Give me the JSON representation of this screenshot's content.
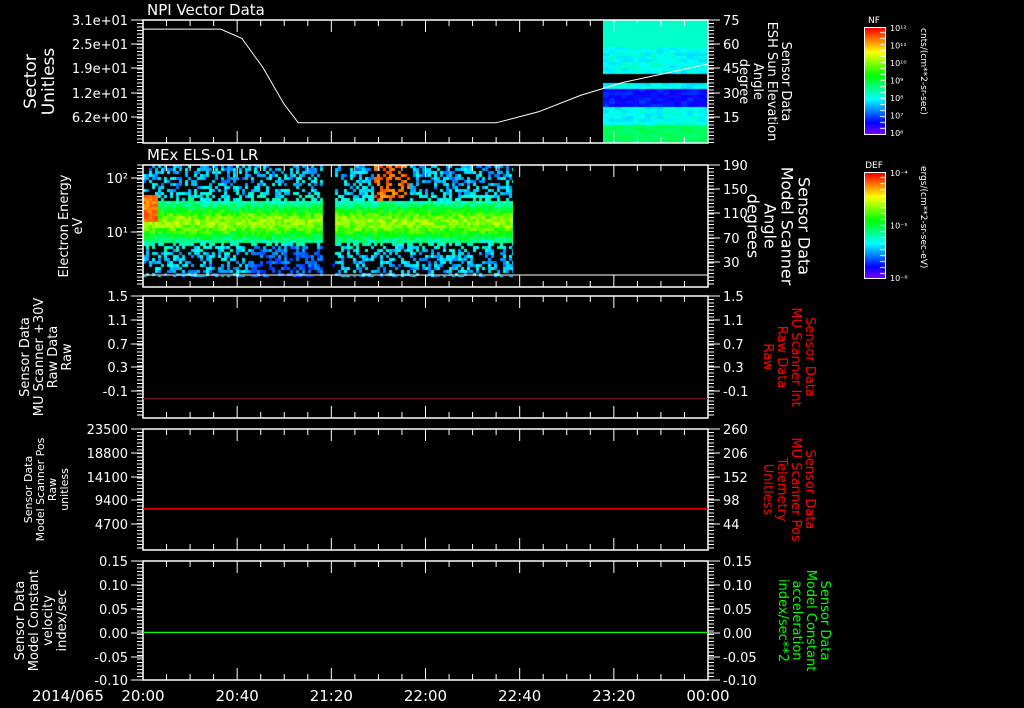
{
  "colors": {
    "background": "#000000",
    "axis": "#ffffff",
    "red": "#ff0000",
    "green": "#00ff00",
    "grey_line": "#7a2020"
  },
  "time_axis": {
    "date_label": "2014/065",
    "ticks": [
      "20:00",
      "20:40",
      "21:20",
      "22:00",
      "22:40",
      "23:20",
      "00:00"
    ],
    "range_hours": [
      20,
      24
    ]
  },
  "chart_data": [
    {
      "type": "line",
      "title": "NPI Vector Data",
      "ylabel": [
        "Sector",
        "Unitless"
      ],
      "yticks": [
        "3.1e+01",
        "2.5e+01",
        "1.9e+01",
        "1.2e+01",
        "6.2e+00"
      ],
      "ylim": [
        0,
        31
      ],
      "y2label": [
        "Sensor Data",
        "ESH Sun Elevation",
        "Angle",
        "degree"
      ],
      "y2ticks": [
        "75",
        "60",
        "45",
        "30",
        "15"
      ],
      "y2lim": [
        0,
        75
      ],
      "series": [
        {
          "name": "Sector",
          "x": [
            20.0,
            20.55,
            20.7,
            20.85,
            21.0,
            21.1,
            22.0,
            22.5,
            22.8,
            23.1,
            23.4,
            23.7,
            24.0
          ],
          "y": [
            28.5,
            28.5,
            26,
            18,
            8,
            3,
            3,
            3,
            6,
            10.5,
            14,
            16.5,
            19
          ]
        }
      ],
      "spectrogram": {
        "x_range": [
          23.2,
          24.0
        ],
        "colormap": "NF"
      }
    },
    {
      "type": "heatmap",
      "title": "MEx ELS-01 LR",
      "ylabel": [
        "Electron Energy",
        "eV"
      ],
      "yticks": [
        "10²",
        "10¹"
      ],
      "ylim_log": [
        0,
        2.3
      ],
      "y2label": [
        "Sensor Data",
        "Model Scanner",
        "Angle",
        "degrees"
      ],
      "y2ticks": [
        "190",
        "150",
        "110",
        "70",
        "30"
      ],
      "x_range": [
        20.0,
        22.63
      ],
      "gap": [
        21.27,
        21.37
      ],
      "colormap": "DEF"
    },
    {
      "type": "line",
      "ylabel": [
        "Sensor Data",
        "MU Scanner +30V",
        "Raw Data",
        "Raw"
      ],
      "yticks": [
        "1.5",
        "1.1",
        "0.7",
        "0.3",
        "-0.1"
      ],
      "ylim": [
        -0.4,
        1.5
      ],
      "y2label": [
        "Sensor Data",
        "MU Scanner Int",
        "Raw Data",
        "Raw"
      ],
      "y2ticks": [
        "1.5",
        "1.1",
        "0.7",
        "0.3",
        "-0.1"
      ],
      "series": [
        {
          "name": "MU Scanner +30V",
          "x": [
            20.0,
            24.0
          ],
          "y": [
            -0.1,
            -0.1
          ]
        }
      ]
    },
    {
      "type": "line",
      "ylabel": [
        "Sensor Data",
        "Model Scanner Pos",
        "Raw",
        "unitless"
      ],
      "yticks": [
        "23500",
        "18800",
        "14100",
        "9400",
        "4700"
      ],
      "ylim": [
        0,
        23500
      ],
      "y2label": [
        "Sensor Data",
        "MU Scanner Pos",
        "Telemetry",
        "Unitless"
      ],
      "y2ticks": [
        "260",
        "206",
        "152",
        "98",
        "44"
      ],
      "series": [
        {
          "name": "Model Scanner Pos",
          "x": [
            20.0,
            24.0
          ],
          "y": [
            8000,
            8000
          ]
        }
      ]
    },
    {
      "type": "line",
      "ylabel": [
        "Sensor Data",
        "Model Constant",
        "velocity",
        "index/sec"
      ],
      "yticks": [
        "0.15",
        "0.10",
        "0.05",
        "0.00",
        "-0.05",
        "-0.10"
      ],
      "ylim": [
        -0.1,
        0.15
      ],
      "y2label": [
        "Sensor Data",
        "Model Constant",
        "acceleration",
        "index/sec**2"
      ],
      "y2ticks": [
        "0.15",
        "0.10",
        "0.05",
        "0.00",
        "-0.05",
        "-0.10"
      ],
      "series": [
        {
          "name": "Model Constant velocity",
          "x": [
            20.0,
            24.0
          ],
          "y": [
            0.0,
            0.0
          ]
        }
      ]
    }
  ],
  "colorbars": [
    {
      "label": "NF",
      "ticks": [
        "10¹²",
        "10¹¹",
        "10¹⁰",
        "10⁹",
        "10⁸",
        "10⁷",
        "10⁶"
      ],
      "units": "cnts/(cm**2-sr-sec)"
    },
    {
      "label": "DEF",
      "ticks": [
        "10⁻⁴",
        "10⁻⁵",
        "10⁻⁶"
      ],
      "units": "ergs/(cm**2-sr-sec-eV)"
    }
  ]
}
